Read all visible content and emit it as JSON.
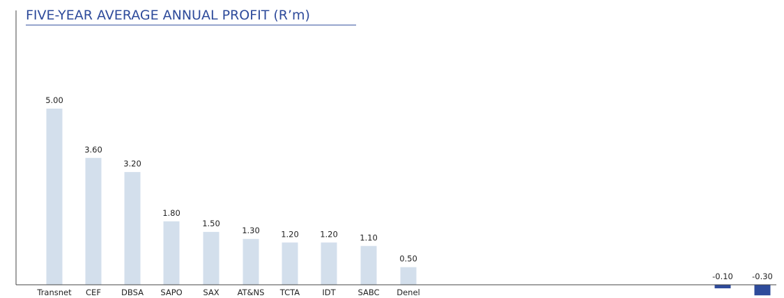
{
  "chart_data": {
    "type": "bar",
    "title": "FIVE-YEAR AVERAGE ANNUAL PROFIT (R’m)",
    "categories": [
      "Transnet",
      "CEF",
      "DBSA",
      "SAPO",
      "SAX",
      "AT&NS",
      "TCTA",
      "IDT",
      "SABC",
      "Denel",
      "",
      ""
    ],
    "values": [
      5.0,
      3.6,
      3.2,
      1.8,
      1.5,
      1.3,
      1.2,
      1.2,
      1.1,
      0.5,
      -0.1,
      -0.3
    ],
    "value_labels": [
      "5.00",
      "3.60",
      "3.20",
      "1.80",
      "1.50",
      "1.30",
      "1.20",
      "1.20",
      "1.10",
      "0.50",
      "-0.10",
      "-0.30"
    ],
    "xlabel": "",
    "ylabel": "",
    "ylim": [
      -0.3,
      5.0
    ],
    "grid": false,
    "colors": {
      "positive": "#d3dfec",
      "negative": "#2e4b9b",
      "title": "#2e4b9b",
      "axis": "#444444"
    }
  }
}
